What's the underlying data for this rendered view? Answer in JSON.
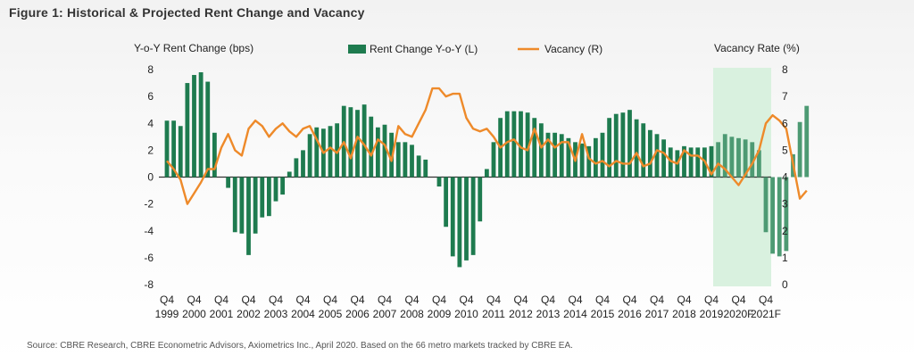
{
  "figure_title": "Figure 1: Historical & Projected Rent Change and Vacancy",
  "source": "Source: CBRE Research, CBRE Econometric Advisors, Axiometrics Inc., April 2020. Based on the 66 metro markets tracked by CBRE EA.",
  "colors": {
    "bars": "#1e7b4f",
    "projected_bars": "#4d9a73",
    "vacancy": "#ee8a2a",
    "projection_band": "#d9f1df",
    "axis": "#222222"
  },
  "chart_data": {
    "type": "bar",
    "title": "",
    "left_axis_label": "Y-o-Y Rent Change (bps)",
    "right_axis_label": "Vacancy Rate (%)",
    "ylim_left": [
      -8,
      8
    ],
    "ylim_right": [
      0,
      8
    ],
    "left_ticks": [
      "8",
      "6",
      "4",
      "2",
      "0",
      "-2",
      "-4",
      "-6",
      "-8"
    ],
    "right_ticks": [
      "8",
      "7",
      "6",
      "5",
      "4",
      "3",
      "2",
      "1",
      "0"
    ],
    "x_tick_labels": [
      {
        "quarter": "Q4",
        "year": "1999"
      },
      {
        "quarter": "Q4",
        "year": "2000"
      },
      {
        "quarter": "Q4",
        "year": "2001"
      },
      {
        "quarter": "Q4",
        "year": "2002"
      },
      {
        "quarter": "Q4",
        "year": "2003"
      },
      {
        "quarter": "Q4",
        "year": "2004"
      },
      {
        "quarter": "Q4",
        "year": "2005"
      },
      {
        "quarter": "Q4",
        "year": "2006"
      },
      {
        "quarter": "Q4",
        "year": "2007"
      },
      {
        "quarter": "Q4",
        "year": "2008"
      },
      {
        "quarter": "Q4",
        "year": "2009"
      },
      {
        "quarter": "Q4",
        "year": "2010"
      },
      {
        "quarter": "Q4",
        "year": "2011"
      },
      {
        "quarter": "Q4",
        "year": "2012"
      },
      {
        "quarter": "Q4",
        "year": "2013"
      },
      {
        "quarter": "Q4",
        "year": "2014"
      },
      {
        "quarter": "Q4",
        "year": "2015"
      },
      {
        "quarter": "Q4",
        "year": "2016"
      },
      {
        "quarter": "Q4",
        "year": "2017"
      },
      {
        "quarter": "Q4",
        "year": "2018"
      },
      {
        "quarter": "Q4",
        "year": "2019"
      },
      {
        "quarter": "Q4",
        "year": "2020F"
      },
      {
        "quarter": "Q4",
        "year": "2021F"
      }
    ],
    "projection_starts_at_tick": 20,
    "legend": {
      "placement": "top",
      "bar_label": "Rent Change Y-o-Y (L)",
      "line_label": "Vacancy (R)"
    },
    "series": [
      {
        "name": "Rent Change Y-o-Y (L)",
        "axis": "left",
        "type": "bar",
        "values": [
          4.2,
          4.2,
          3.8,
          7.0,
          7.6,
          7.8,
          7.1,
          3.3,
          0,
          -0.8,
          -4.1,
          -4.2,
          -5.8,
          -4.2,
          -3.0,
          -2.9,
          -1.8,
          -1.3,
          0.4,
          1.4,
          2.0,
          3.2,
          3.7,
          3.6,
          3.8,
          4.0,
          5.3,
          5.2,
          5.0,
          5.4,
          4.5,
          3.7,
          3.9,
          3.3,
          2.6,
          2.6,
          2.4,
          1.6,
          1.3,
          0,
          -0.7,
          -3.7,
          -5.9,
          -6.7,
          -6.2,
          -5.8,
          -3.3,
          0.6,
          2.6,
          4.4,
          4.9,
          4.9,
          4.9,
          4.8,
          4.4,
          4.0,
          3.3,
          3.3,
          3.2,
          2.9,
          2.6,
          2.5,
          2.3,
          2.9,
          3.3,
          4.4,
          4.7,
          4.8,
          5.0,
          4.3,
          4.0,
          3.5,
          3.2,
          2.8,
          2.2,
          2.0,
          2.3,
          2.2,
          2.2,
          2.2,
          2.3,
          2.6,
          3.2,
          3.0,
          2.9,
          2.8,
          2.6,
          2.0,
          -4.1,
          -5.7,
          -5.9,
          -5.5,
          1.7,
          4.1,
          5.3
        ]
      },
      {
        "name": "Vacancy (R)",
        "axis": "right",
        "type": "line",
        "values": [
          4.6,
          4.3,
          3.9,
          3.0,
          3.4,
          3.8,
          4.3,
          4.3,
          5.1,
          5.6,
          5.0,
          4.8,
          5.8,
          6.1,
          5.9,
          5.5,
          5.8,
          6.0,
          5.7,
          5.5,
          5.8,
          5.9,
          5.4,
          4.9,
          5.1,
          4.9,
          5.3,
          4.7,
          5.5,
          5.2,
          4.8,
          5.4,
          5.2,
          4.6,
          5.9,
          5.6,
          5.5,
          6.0,
          6.5,
          7.3,
          7.3,
          7.0,
          7.1,
          7.1,
          6.2,
          5.8,
          5.7,
          5.8,
          5.5,
          5.1,
          5.3,
          5.4,
          5.1,
          5.0,
          5.8,
          5.1,
          5.4,
          5.1,
          5.3,
          5.3,
          4.6,
          5.6,
          4.7,
          4.5,
          4.6,
          4.4,
          4.6,
          4.5,
          4.5,
          4.9,
          4.4,
          4.5,
          5.0,
          4.9,
          4.6,
          4.5,
          5.0,
          4.8,
          4.8,
          4.6,
          4.1,
          4.5,
          4.3,
          4.0,
          3.7,
          4.1,
          4.5,
          5.0,
          6.0,
          6.3,
          6.1,
          5.8,
          4.5,
          3.2,
          3.5
        ]
      }
    ]
  }
}
